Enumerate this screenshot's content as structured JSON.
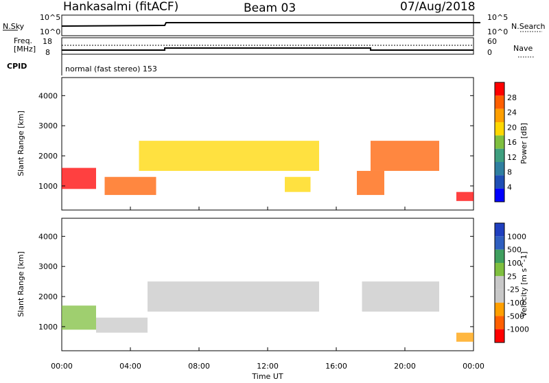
{
  "header": {
    "site": "Hankasalmi (fitACF)",
    "beam": "Beam 03",
    "date": "07/Aug/2018"
  },
  "noise_panel": {
    "left_label": "N.Sky",
    "left_ticks": [
      "10^5",
      "10^0"
    ],
    "right_label": "N.Search",
    "right_ticks": [
      "10^5",
      "10^0"
    ]
  },
  "freq_panel": {
    "left_label_1": "Freq.",
    "left_label_2": "[MHz]",
    "left_ticks": [
      "18",
      "8"
    ],
    "right_label": "Nave",
    "right_ticks": [
      "60",
      "0"
    ]
  },
  "cpid_panel": {
    "label": "CPID",
    "mode_text": "normal (fast stereo) 153"
  },
  "colors": {
    "power_scale": [
      "#0000ff",
      "#1f4fb5",
      "#2f7fa0",
      "#3f9f7f",
      "#7fbf3f",
      "#ffd700",
      "#ff9f00",
      "#ff5f00",
      "#ff0000"
    ],
    "velocity_scale": [
      "#ff0000",
      "#ff5f00",
      "#ff9f00",
      "#c8c8c8",
      "#c8c8c8",
      "#7fbf3f",
      "#3f9f5f",
      "#2f5fbf",
      "#1f3fbf"
    ]
  },
  "chart_data": [
    {
      "type": "heatmap",
      "quantity": "Power",
      "ylabel": "Slant Range [km]",
      "yticks": [
        "1000",
        "2000",
        "3000",
        "4000"
      ],
      "ylim": [
        200,
        4600
      ],
      "xlim": [
        0,
        24
      ],
      "colorbar": {
        "label": "Power [dB]",
        "ticks": [
          "4",
          "8",
          "12",
          "16",
          "20",
          "24",
          "28"
        ]
      },
      "approx_echo_regions": [
        {
          "t_start": 0.0,
          "t_end": 2.0,
          "range_km": [
            900,
            1600
          ],
          "peak_db": 28
        },
        {
          "t_start": 2.5,
          "t_end": 5.5,
          "range_km": [
            700,
            1300
          ],
          "peak_db": 26
        },
        {
          "t_start": 4.5,
          "t_end": 15.0,
          "range_km": [
            1500,
            2500
          ],
          "peak_db": 20
        },
        {
          "t_start": 13.0,
          "t_end": 14.5,
          "range_km": [
            800,
            1300
          ],
          "peak_db": 18
        },
        {
          "t_start": 17.2,
          "t_end": 18.8,
          "range_km": [
            700,
            1500
          ],
          "peak_db": 26
        },
        {
          "t_start": 18.0,
          "t_end": 22.0,
          "range_km": [
            1500,
            2500
          ],
          "peak_db": 24
        },
        {
          "t_start": 23.0,
          "t_end": 24.0,
          "range_km": [
            500,
            800
          ],
          "peak_db": 28
        }
      ]
    },
    {
      "type": "heatmap",
      "quantity": "Velocity",
      "ylabel": "Slant Range [km]",
      "yticks": [
        "1000",
        "2000",
        "3000",
        "4000"
      ],
      "ylim": [
        200,
        4600
      ],
      "xlim": [
        0,
        24
      ],
      "xticks": [
        "00:00",
        "04:00",
        "08:00",
        "12:00",
        "16:00",
        "20:00",
        "00:00"
      ],
      "xlabel": "Time UT",
      "colorbar": {
        "label": "Velocity [m s^-1]",
        "ticks": [
          "1000",
          "500",
          "100",
          "25",
          "-25",
          "-100",
          "-500",
          "-1000"
        ]
      },
      "approx_echo_regions": [
        {
          "t_start": 0.0,
          "t_end": 2.0,
          "range_km": [
            900,
            1700
          ],
          "velocity": 100
        },
        {
          "t_start": 2.0,
          "t_end": 5.0,
          "range_km": [
            800,
            1300
          ],
          "velocity": 50
        },
        {
          "t_start": 5.0,
          "t_end": 15.0,
          "range_km": [
            1500,
            2500
          ],
          "velocity": 0
        },
        {
          "t_start": 17.5,
          "t_end": 22.0,
          "range_km": [
            1500,
            2500
          ],
          "velocity": 0
        },
        {
          "t_start": 23.0,
          "t_end": 24.0,
          "range_km": [
            500,
            800
          ],
          "velocity": -100
        }
      ]
    }
  ]
}
